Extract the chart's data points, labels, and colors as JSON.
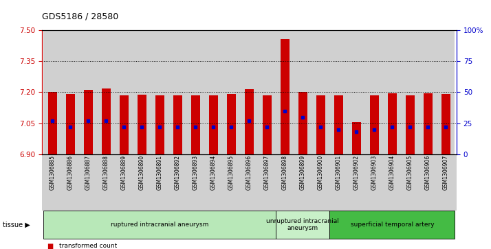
{
  "title": "GDS5186 / 28580",
  "samples": [
    "GSM1306885",
    "GSM1306886",
    "GSM1306887",
    "GSM1306888",
    "GSM1306889",
    "GSM1306890",
    "GSM1306891",
    "GSM1306892",
    "GSM1306893",
    "GSM1306894",
    "GSM1306895",
    "GSM1306896",
    "GSM1306897",
    "GSM1306898",
    "GSM1306899",
    "GSM1306900",
    "GSM1306901",
    "GSM1306902",
    "GSM1306903",
    "GSM1306904",
    "GSM1306905",
    "GSM1306906",
    "GSM1306907"
  ],
  "transformed_count": [
    7.2,
    7.192,
    7.21,
    7.218,
    7.185,
    7.188,
    7.185,
    7.185,
    7.185,
    7.185,
    7.19,
    7.215,
    7.185,
    7.455,
    7.2,
    7.185,
    7.185,
    7.055,
    7.185,
    7.195,
    7.185,
    7.195,
    7.192
  ],
  "percentile_rank": [
    27,
    22,
    27,
    27,
    22,
    22,
    22,
    22,
    22,
    22,
    22,
    27,
    22,
    35,
    30,
    22,
    20,
    18,
    20,
    22,
    22,
    22,
    22
  ],
  "ylim_left": [
    6.9,
    7.5
  ],
  "ylim_right": [
    0,
    100
  ],
  "yticks_left": [
    6.9,
    7.05,
    7.2,
    7.35,
    7.5
  ],
  "yticks_right": [
    0,
    25,
    50,
    75,
    100
  ],
  "ytick_labels_right": [
    "0",
    "25",
    "50",
    "75",
    "100%"
  ],
  "grid_values": [
    7.05,
    7.2,
    7.35
  ],
  "tissue_groups": [
    {
      "label": "ruptured intracranial aneurysm",
      "start": 0,
      "end": 13,
      "color": "#b8e8b8"
    },
    {
      "label": "unruptured intracranial\naneurysm",
      "start": 13,
      "end": 16,
      "color": "#c8f0c8"
    },
    {
      "label": "superficial temporal artery",
      "start": 16,
      "end": 23,
      "color": "#44bb44"
    }
  ],
  "bar_color": "#cc0000",
  "marker_color": "#0000cc",
  "col_bg_color": "#d0d0d0",
  "plot_bg_color": "#ffffff",
  "axis_color_left": "#cc0000",
  "axis_color_right": "#0000cc",
  "bar_width": 0.5,
  "xlim": [
    -0.6,
    22.6
  ],
  "tissue_label": "tissue"
}
